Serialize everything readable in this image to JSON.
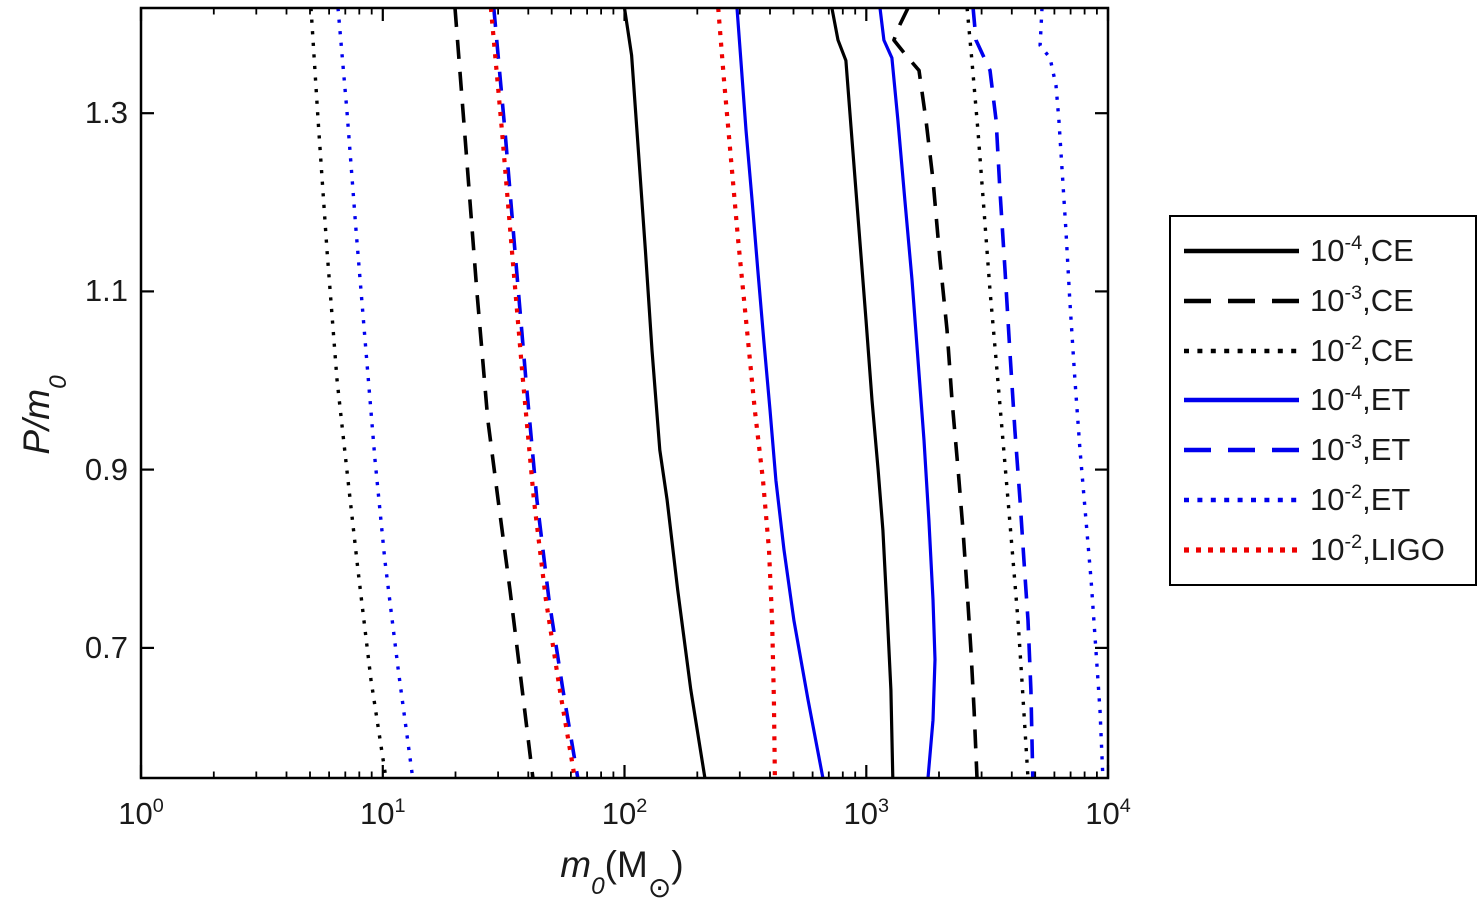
{
  "figure": {
    "background": "#ffffff"
  },
  "colors": {
    "black": "#000000",
    "blue": "#0000ee",
    "red": "#ee0000",
    "axis": "#000000",
    "text": "#1a1a1a"
  },
  "axes": {
    "x": {
      "scale": "log",
      "label": {
        "var": "m",
        "sub": "0",
        "mid": "(M",
        "sun": "⊙",
        "close": ")"
      },
      "tick_labels": [
        {
          "base": "10",
          "exp": "0",
          "value": 1
        },
        {
          "base": "10",
          "exp": "1",
          "value": 10
        },
        {
          "base": "10",
          "exp": "2",
          "value": 100
        },
        {
          "base": "10",
          "exp": "3",
          "value": 1000
        },
        {
          "base": "10",
          "exp": "4",
          "value": 10000
        }
      ]
    },
    "y": {
      "scale": "linear",
      "label": {
        "main": "P/m",
        "sub": "0"
      },
      "ticks": [
        {
          "label": "1.3",
          "value": 1.3
        },
        {
          "label": "1.1",
          "value": 1.1
        },
        {
          "label": "0.9",
          "value": 0.9
        },
        {
          "label": "0.7",
          "value": 0.7
        }
      ]
    }
  },
  "legend": {
    "entries": [
      {
        "label": {
          "base": "10",
          "exp": "-4",
          "suffix": ",CE"
        },
        "color": "#000000",
        "style": "solid"
      },
      {
        "label": {
          "base": "10",
          "exp": "-3",
          "suffix": ",CE"
        },
        "color": "#000000",
        "style": "dashed"
      },
      {
        "label": {
          "base": "10",
          "exp": "-2",
          "suffix": ",CE"
        },
        "color": "#000000",
        "style": "dotted"
      },
      {
        "label": {
          "base": "10",
          "exp": "-4",
          "suffix": ",ET"
        },
        "color": "#0000ee",
        "style": "solid"
      },
      {
        "label": {
          "base": "10",
          "exp": "-3",
          "suffix": ",ET"
        },
        "color": "#0000ee",
        "style": "dashed"
      },
      {
        "label": {
          "base": "10",
          "exp": "-2",
          "suffix": ",ET"
        },
        "color": "#0000ee",
        "style": "dotted"
      },
      {
        "label": {
          "base": "10",
          "exp": "-2",
          "suffix": ",LIGO"
        },
        "color": "#ee0000",
        "style": "dotted-bold"
      }
    ]
  },
  "chart_data": {
    "type": "line",
    "title": "",
    "xlabel": "m0 (Msun)",
    "ylabel": "P/m0",
    "xscale": "log",
    "xlim": [
      1,
      10000
    ],
    "ylim": [
      0.554,
      1.418
    ],
    "grid": false,
    "legend_position": "outside-right",
    "series": [
      {
        "name": "10^-2,CE left boundary",
        "color": "#000000",
        "style": "dotted",
        "points": [
          [
            5.05,
            1.418
          ],
          [
            5.4,
            1.292
          ],
          [
            5.88,
            1.146
          ],
          [
            6.47,
            1.001
          ],
          [
            7.18,
            0.888
          ],
          [
            7.9,
            0.787
          ],
          [
            8.94,
            0.664
          ],
          [
            10.3,
            0.554
          ]
        ]
      },
      {
        "name": "10^-2,ET left boundary",
        "color": "#0000ee",
        "style": "dotted",
        "points": [
          [
            6.53,
            1.418
          ],
          [
            7.11,
            1.303
          ],
          [
            7.75,
            1.169
          ],
          [
            8.52,
            1.034
          ],
          [
            9.29,
            0.911
          ],
          [
            10.2,
            0.799
          ],
          [
            11.6,
            0.675
          ],
          [
            13.3,
            0.554
          ]
        ]
      },
      {
        "name": "10^-3,CE left boundary",
        "color": "#000000",
        "style": "dashed",
        "points": [
          [
            19.9,
            1.418
          ],
          [
            22.1,
            1.259
          ],
          [
            24.5,
            1.101
          ],
          [
            27.2,
            0.956
          ],
          [
            30.0,
            0.866
          ],
          [
            33.6,
            0.765
          ],
          [
            37.3,
            0.664
          ],
          [
            41.8,
            0.554
          ]
        ]
      },
      {
        "name": "10^-3,ET left boundary",
        "color": "#0000ee",
        "style": "dashed",
        "points": [
          [
            28.8,
            1.418
          ],
          [
            32.0,
            1.281
          ],
          [
            35.2,
            1.146
          ],
          [
            39.1,
            1.001
          ],
          [
            43.4,
            0.866
          ],
          [
            48.7,
            0.754
          ],
          [
            55.6,
            0.653
          ],
          [
            64.1,
            0.554
          ]
        ]
      },
      {
        "name": "10^-2,LIGO left boundary",
        "color": "#ee0000",
        "style": "dotted-bold",
        "points": [
          [
            28.0,
            1.418
          ],
          [
            31.1,
            1.281
          ],
          [
            34.2,
            1.146
          ],
          [
            38.0,
            1.001
          ],
          [
            42.2,
            0.866
          ],
          [
            47.3,
            0.754
          ],
          [
            54.0,
            0.653
          ],
          [
            62.3,
            0.554
          ]
        ]
      },
      {
        "name": "10^-4,CE left boundary",
        "color": "#000000",
        "style": "solid",
        "points": [
          [
            100,
            1.418
          ],
          [
            107,
            1.365
          ],
          [
            114,
            1.259
          ],
          [
            122,
            1.146
          ],
          [
            130,
            1.034
          ],
          [
            140,
            0.922
          ],
          [
            150,
            0.866
          ],
          [
            166,
            0.765
          ],
          [
            188,
            0.653
          ],
          [
            215,
            0.554
          ]
        ]
      },
      {
        "name": "10^-2,LIGO right boundary",
        "color": "#ee0000",
        "style": "dotted-bold",
        "points": [
          [
            244,
            1.418
          ],
          [
            258,
            1.337
          ],
          [
            276,
            1.247
          ],
          [
            295,
            1.158
          ],
          [
            318,
            1.068
          ],
          [
            346,
            0.967
          ],
          [
            374,
            0.888
          ],
          [
            396,
            0.81
          ],
          [
            408,
            0.731
          ],
          [
            415,
            0.642
          ],
          [
            419,
            0.554
          ]
        ]
      },
      {
        "name": "10^-4,ET left boundary",
        "color": "#0000ee",
        "style": "solid",
        "points": [
          [
            292,
            1.418
          ],
          [
            303,
            1.359
          ],
          [
            318,
            1.281
          ],
          [
            337,
            1.202
          ],
          [
            356,
            1.124
          ],
          [
            377,
            1.045
          ],
          [
            400,
            0.967
          ],
          [
            423,
            0.888
          ],
          [
            457,
            0.81
          ],
          [
            502,
            0.731
          ],
          [
            574,
            0.642
          ],
          [
            662,
            0.554
          ]
        ]
      },
      {
        "name": "10^-4,CE right boundary",
        "color": "#000000",
        "style": "solid",
        "points": [
          [
            721,
            1.418
          ],
          [
            764,
            1.382
          ],
          [
            824,
            1.359
          ],
          [
            873,
            1.27
          ],
          [
            933,
            1.169
          ],
          [
            998,
            1.068
          ],
          [
            1056,
            0.978
          ],
          [
            1119,
            0.9
          ],
          [
            1172,
            0.832
          ],
          [
            1219,
            0.743
          ],
          [
            1265,
            0.653
          ],
          [
            1288,
            0.554
          ]
        ]
      },
      {
        "name": "10^-4,ET right boundary",
        "color": "#0000ee",
        "style": "solid",
        "points": [
          [
            1140,
            1.418
          ],
          [
            1183,
            1.382
          ],
          [
            1277,
            1.362
          ],
          [
            1352,
            1.292
          ],
          [
            1445,
            1.202
          ],
          [
            1546,
            1.113
          ],
          [
            1637,
            1.023
          ],
          [
            1733,
            0.933
          ],
          [
            1817,
            0.843
          ],
          [
            1888,
            0.754
          ],
          [
            1924,
            0.687
          ],
          [
            1888,
            0.619
          ],
          [
            1800,
            0.554
          ]
        ]
      },
      {
        "name": "10^-3,CE right boundary",
        "color": "#000000",
        "style": "dashed",
        "points": [
          [
            1489,
            1.418
          ],
          [
            1377,
            1.399
          ],
          [
            1301,
            1.382
          ],
          [
            1459,
            1.365
          ],
          [
            1652,
            1.348
          ],
          [
            1766,
            1.292
          ],
          [
            1888,
            1.225
          ],
          [
            2018,
            1.135
          ],
          [
            2157,
            1.057
          ],
          [
            2264,
            0.978
          ],
          [
            2399,
            0.9
          ],
          [
            2512,
            0.832
          ],
          [
            2612,
            0.765
          ],
          [
            2710,
            0.698
          ],
          [
            2793,
            0.63
          ],
          [
            2871,
            0.554
          ]
        ]
      },
      {
        "name": "10^-2,CE right boundary",
        "color": "#000000",
        "style": "dotted",
        "points": [
          [
            2612,
            1.418
          ],
          [
            2735,
            1.359
          ],
          [
            2897,
            1.281
          ],
          [
            3069,
            1.191
          ],
          [
            3251,
            1.101
          ],
          [
            3443,
            1.023
          ],
          [
            3648,
            0.944
          ],
          [
            3858,
            0.866
          ],
          [
            4046,
            0.799
          ],
          [
            4245,
            0.731
          ],
          [
            4406,
            0.664
          ],
          [
            4538,
            0.608
          ],
          [
            4668,
            0.554
          ]
        ]
      },
      {
        "name": "10^-3,ET right boundary",
        "color": "#0000ee",
        "style": "dashed",
        "points": [
          [
            2766,
            1.418
          ],
          [
            2845,
            1.382
          ],
          [
            3251,
            1.348
          ],
          [
            3443,
            1.292
          ],
          [
            3573,
            1.214
          ],
          [
            3750,
            1.124
          ],
          [
            3926,
            1.034
          ],
          [
            4121,
            0.944
          ],
          [
            4325,
            0.866
          ],
          [
            4487,
            0.799
          ],
          [
            4668,
            0.731
          ],
          [
            4797,
            0.653
          ],
          [
            4887,
            0.554
          ]
        ]
      },
      {
        "name": "10^-2,ET right boundary",
        "color": "#0000ee",
        "style": "dotted",
        "points": [
          [
            5333,
            1.418
          ],
          [
            5236,
            1.376
          ],
          [
            5754,
            1.362
          ],
          [
            6095,
            1.331
          ],
          [
            6266,
            1.292
          ],
          [
            6457,
            1.236
          ],
          [
            6699,
            1.169
          ],
          [
            6950,
            1.09
          ],
          [
            7295,
            1.001
          ],
          [
            7656,
            0.922
          ],
          [
            8110,
            0.843
          ],
          [
            8511,
            0.776
          ],
          [
            8913,
            0.698
          ],
          [
            9268,
            0.63
          ],
          [
            9530,
            0.554
          ]
        ]
      }
    ]
  }
}
